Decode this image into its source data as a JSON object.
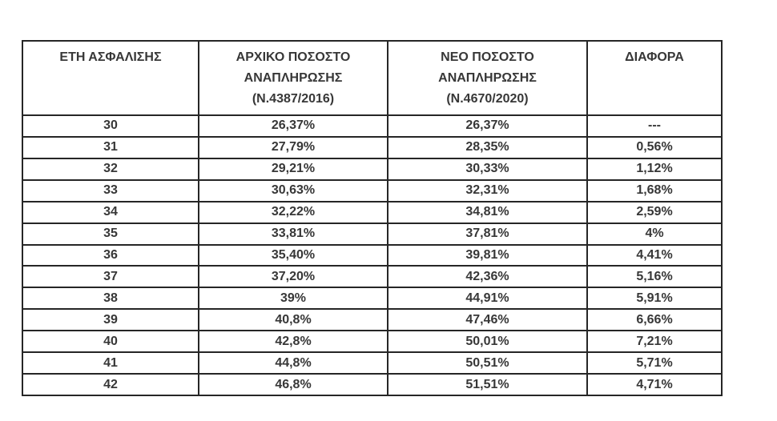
{
  "table": {
    "headers": [
      {
        "lines": [
          "ΕΤΗ ΑΣΦΑΛΙΣΗΣ"
        ]
      },
      {
        "lines": [
          "ΑΡΧΙΚΟ ΠΟΣΟΣΤΟ",
          "ΑΝΑΠΛΗΡΩΣΗΣ",
          "(Ν.4387/2016)"
        ]
      },
      {
        "lines": [
          "ΝΕΟ ΠΟΣΟΣΤΟ",
          "ΑΝΑΠΛΗΡΩΣΗΣ",
          "(Ν.4670/2020)"
        ]
      },
      {
        "lines": [
          "ΔΙΑΦΟΡΑ"
        ]
      }
    ],
    "rows": [
      {
        "cells": [
          "30",
          "26,37%",
          "26,37%",
          "---"
        ]
      },
      {
        "cells": [
          "31",
          "27,79%",
          "28,35%",
          "0,56%"
        ]
      },
      {
        "cells": [
          "32",
          "29,21%",
          "30,33%",
          "1,12%"
        ]
      },
      {
        "cells": [
          "33",
          "30,63%",
          "32,31%",
          "1,68%"
        ]
      },
      {
        "cells": [
          "34",
          "32,22%",
          "34,81%",
          "2,59%"
        ]
      },
      {
        "cells": [
          "35",
          "33,81%",
          "37,81%",
          "4%"
        ]
      },
      {
        "cells": [
          "36",
          "35,40%",
          "39,81%",
          "4,41%"
        ]
      },
      {
        "cells": [
          "37",
          "37,20%",
          "42,36%",
          "5,16%"
        ]
      },
      {
        "cells": [
          "38",
          "39%",
          "44,91%",
          "5,91%"
        ]
      },
      {
        "cells": [
          "39",
          "40,8%",
          "47,46%",
          "6,66%"
        ]
      },
      {
        "cells": [
          "40",
          "42,8%",
          "50,01%",
          "7,21%"
        ]
      },
      {
        "cells": [
          "41",
          "44,8%",
          "50,51%",
          "5,71%"
        ]
      },
      {
        "cells": [
          "42",
          "46,8%",
          "51,51%",
          "4,71%"
        ]
      }
    ]
  }
}
